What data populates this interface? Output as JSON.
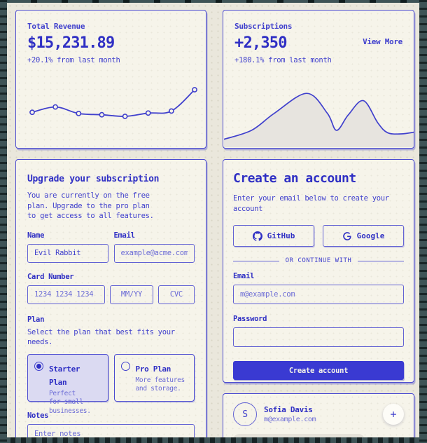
{
  "theme": {
    "accent": "#4040cd",
    "accent_strong": "#2f2fc4",
    "accent_muted": "#6c6cd6",
    "input_border": "#6262d4",
    "card_border": "#4b4bd0",
    "frame_bg": "#3e5356",
    "page_bg": "#eae7dc",
    "card_bg": "#f6f4ea",
    "plan_selected_bg": "#dbdaf2",
    "area_fill": "#e7e4df",
    "bubble_bg": "#e5e2d9",
    "primary_button_bg": "#3a3ad2",
    "primary_button_text": "#f4f2e8"
  },
  "revenue_card": {
    "label": "Total Revenue",
    "value": "$15,231.89",
    "change": "+20.1% from last month"
  },
  "subscriptions_card": {
    "label": "Subscriptions",
    "value": "+2,350",
    "view_more": "View More",
    "change": "+180.1% from last month"
  },
  "upgrade_card": {
    "title": "Upgrade your subscription",
    "description": "You are currently on the free\nplan. Upgrade to the pro plan\nto get access to all features.",
    "name_label": "Name",
    "name_value": "Evil Rabbit",
    "email_label": "Email",
    "email_placeholder": "example@acme.com",
    "card_number_label": "Card Number",
    "card_number_placeholder": "1234 1234 1234 1234",
    "expiry_placeholder": "MM/YY",
    "cvc_placeholder": "CVC",
    "plan_label": "Plan",
    "plan_description": "Select the plan that best fits your\nneeds.",
    "plans": [
      {
        "name": "Starter Plan",
        "description": "Perfect\nfor small\nbusinesses.",
        "selected": true
      },
      {
        "name": "Pro Plan",
        "description": "More features\nand storage.",
        "selected": false
      }
    ],
    "notes_label": "Notes",
    "notes_placeholder": "Enter notes"
  },
  "account_card": {
    "title": "Create an account",
    "description": "Enter your email below to create your\naccount",
    "github_label": "GitHub",
    "google_label": "Google",
    "divider_label": "OR CONTINUE WITH",
    "email_label": "Email",
    "email_placeholder": "m@example.com",
    "password_label": "Password",
    "password_value": "",
    "submit_label": "Create account"
  },
  "chat_card": {
    "avatar_initial": "S",
    "name": "Sofia Davis",
    "email": "m@example.com",
    "add_button_glyph": "+"
  },
  "chart_data": [
    {
      "type": "line",
      "card": "Total Revenue",
      "values": [
        35,
        48,
        32,
        29,
        25,
        33,
        38,
        90
      ],
      "value_scale": "relative 0-100, no axes/labels shown in UI",
      "markers": "open circles",
      "grid": false,
      "legend": false
    },
    {
      "type": "area",
      "card": "Subscriptions",
      "x": [
        0,
        14.5,
        26.4,
        43.5,
        54.3,
        59.1,
        65.2,
        73.2,
        80.8,
        85.9,
        93.1,
        100
      ],
      "y": [
        11,
        26,
        54.5,
        88,
        54.5,
        26,
        51.5,
        75.8,
        38.4,
        22,
        20,
        23
      ],
      "value_scale": "percent of chart box, no axes/labels shown in UI",
      "grid": false,
      "legend": false
    }
  ]
}
